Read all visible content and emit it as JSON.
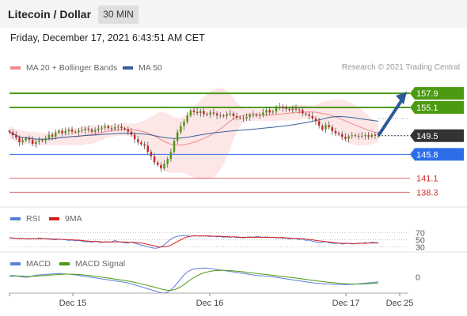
{
  "header": {
    "title": "Litecoin / Dollar",
    "timeframe": "30 MIN"
  },
  "datetime": "Friday, December 17, 2021 6:43:51 AM CET",
  "legend": {
    "bb": "MA 20 + Bollinger Bands",
    "ma50": "MA 50",
    "credit": "Research © 2021 Trading Central"
  },
  "rsi_legend": {
    "rsi": "RSI",
    "ma": "9MA"
  },
  "macd_legend": {
    "macd": "MACD",
    "signal": "MACD Signal"
  },
  "colors": {
    "resistance": "#4c9a10",
    "support": "#2d6ee8",
    "pivot": "#333333",
    "target": "#e06b6b",
    "arrow": "#2b5a9a",
    "ma50": "#3a5f9a",
    "bb": "#f08a8a"
  },
  "chart_data": [
    {
      "type": "candlestick",
      "x_tick_labels": [
        "Dec 15",
        "Dec 16",
        "Dec 17",
        "Dec 25"
      ],
      "ylim": [
        136,
        162
      ],
      "levels": [
        {
          "label": "157.9",
          "value": 157.9,
          "kind": "resistance"
        },
        {
          "label": "155.1",
          "value": 155.1,
          "kind": "resistance"
        },
        {
          "label": "149.5",
          "value": 149.5,
          "kind": "pivot"
        },
        {
          "label": "145.8",
          "value": 145.8,
          "kind": "support"
        },
        {
          "label": "141.1",
          "value": 141.1,
          "kind": "target"
        },
        {
          "label": "138.3",
          "value": 138.3,
          "kind": "target"
        }
      ],
      "close": [
        150.2,
        149.6,
        149.1,
        148.2,
        148.6,
        149.0,
        148.7,
        147.9,
        148.3,
        148.6,
        148.5,
        149.0,
        149.7,
        149.3,
        150.1,
        150.5,
        150.0,
        150.4,
        150.7,
        150.3,
        150.2,
        150.5,
        150.6,
        150.9,
        150.7,
        150.3,
        150.6,
        150.9,
        151.1,
        151.4,
        151.0,
        150.9,
        151.2,
        151.3,
        151.0,
        150.8,
        150.3,
        149.7,
        148.8,
        148.2,
        147.8,
        147.5,
        146.3,
        145.4,
        144.2,
        143.7,
        143.0,
        143.9,
        144.9,
        146.3,
        148.5,
        150.2,
        151.4,
        152.3,
        153.5,
        154.5,
        154.2,
        154.0,
        154.4,
        153.8,
        153.7,
        154.1,
        153.9,
        153.5,
        153.5,
        153.4,
        153.8,
        153.9,
        153.4,
        153.1,
        153.0,
        152.9,
        153.2,
        153.6,
        153.7,
        153.5,
        153.6,
        154.1,
        154.6,
        154.1,
        154.3,
        155.0,
        155.3,
        155.0,
        154.8,
        154.6,
        154.9,
        154.7,
        154.6,
        153.9,
        153.7,
        153.4,
        152.9,
        152.4,
        151.5,
        150.7,
        151.6,
        151.2,
        150.4,
        150.0,
        149.8,
        149.3,
        148.9,
        149.4,
        149.6,
        149.5,
        149.4,
        149.5,
        149.6,
        149.3,
        149.7,
        149.5,
        149.5
      ]
    },
    {
      "type": "line",
      "name": "RSI",
      "ylim": [
        0,
        100
      ],
      "tick_labels": [
        "70",
        "50",
        "30"
      ],
      "series": [
        {
          "name": "RSI",
          "values": [
            56,
            55,
            54,
            53,
            54,
            53,
            52,
            54,
            53,
            55,
            54,
            53,
            52,
            51,
            50,
            52,
            51,
            50,
            48,
            49,
            47,
            48,
            46,
            44,
            45,
            43,
            46,
            44,
            42,
            45,
            43,
            44,
            48,
            45,
            43,
            42,
            41,
            44,
            40,
            38,
            35,
            33,
            31,
            28,
            26,
            27,
            30,
            36,
            44,
            52,
            57,
            60,
            61,
            62,
            61,
            60,
            62,
            61,
            60,
            61,
            60,
            59,
            60,
            58,
            59,
            57,
            58,
            57,
            58,
            56,
            57,
            55,
            57,
            58,
            57,
            59,
            58,
            57,
            58,
            56,
            57,
            55,
            56,
            54,
            55,
            52,
            54,
            53,
            51,
            52,
            48,
            49,
            46,
            44,
            42,
            43,
            45,
            42,
            40,
            39,
            41,
            38,
            39,
            40,
            38,
            39,
            41,
            40,
            42,
            41,
            43,
            42,
            42
          ]
        },
        {
          "name": "9MA",
          "values": [
            55,
            55,
            54,
            54,
            54,
            53,
            53,
            53,
            53,
            53,
            53,
            53,
            53,
            52,
            52,
            52,
            51,
            51,
            50,
            50,
            49,
            49,
            48,
            47,
            46,
            45,
            45,
            45,
            44,
            44,
            44,
            44,
            44,
            44,
            44,
            44,
            43,
            43,
            43,
            42,
            41,
            39,
            37,
            35,
            33,
            31,
            30,
            30,
            32,
            35,
            40,
            45,
            50,
            55,
            58,
            60,
            61,
            61,
            61,
            61,
            61,
            61,
            60,
            60,
            60,
            59,
            59,
            58,
            58,
            58,
            57,
            57,
            57,
            57,
            57,
            57,
            57,
            57,
            57,
            57,
            57,
            56,
            56,
            56,
            55,
            55,
            54,
            54,
            53,
            53,
            52,
            51,
            50,
            48,
            47,
            46,
            45,
            44,
            43,
            42,
            41,
            40,
            40,
            40,
            39,
            39,
            40,
            40,
            40,
            41,
            41,
            41,
            41
          ]
        }
      ]
    },
    {
      "type": "line",
      "name": "MACD",
      "tick_labels": [
        "0"
      ],
      "series": [
        {
          "name": "MACD",
          "values": [
            0.1,
            0.15,
            0.1,
            0.05,
            0.0,
            -0.05,
            0.0,
            0.1,
            0.15,
            0.2,
            0.22,
            0.25,
            0.28,
            0.3,
            0.32,
            0.35,
            0.32,
            0.3,
            0.28,
            0.25,
            0.2,
            0.15,
            0.1,
            0.05,
            0.0,
            -0.05,
            -0.1,
            -0.15,
            -0.2,
            -0.25,
            -0.3,
            -0.35,
            -0.4,
            -0.45,
            -0.5,
            -0.55,
            -0.6,
            -0.7,
            -0.8,
            -0.9,
            -1.0,
            -1.1,
            -1.2,
            -1.3,
            -1.4,
            -1.5,
            -1.6,
            -1.62,
            -1.55,
            -1.3,
            -1.0,
            -0.6,
            -0.2,
            0.2,
            0.5,
            0.7,
            0.8,
            0.85,
            0.88,
            0.9,
            0.88,
            0.85,
            0.8,
            0.75,
            0.7,
            0.65,
            0.6,
            0.55,
            0.5,
            0.45,
            0.4,
            0.35,
            0.3,
            0.25,
            0.2,
            0.15,
            0.12,
            0.1,
            0.08,
            0.05,
            0.0,
            -0.05,
            -0.1,
            -0.15,
            -0.2,
            -0.25,
            -0.3,
            -0.35,
            -0.4,
            -0.45,
            -0.5,
            -0.55,
            -0.6,
            -0.62,
            -0.65,
            -0.68,
            -0.7,
            -0.72,
            -0.74,
            -0.75,
            -0.76,
            -0.77,
            -0.78,
            -0.77,
            -0.75,
            -0.72,
            -0.7,
            -0.67,
            -0.64,
            -0.6,
            -0.57,
            -0.54,
            -0.5
          ]
        },
        {
          "name": "MACD Signal",
          "values": [
            0.05,
            0.08,
            0.1,
            0.09,
            0.08,
            0.06,
            0.05,
            0.06,
            0.08,
            0.1,
            0.12,
            0.14,
            0.17,
            0.2,
            0.22,
            0.25,
            0.27,
            0.28,
            0.28,
            0.27,
            0.26,
            0.24,
            0.21,
            0.18,
            0.15,
            0.11,
            0.07,
            0.03,
            -0.02,
            -0.07,
            -0.12,
            -0.17,
            -0.22,
            -0.27,
            -0.32,
            -0.37,
            -0.42,
            -0.48,
            -0.55,
            -0.62,
            -0.7,
            -0.78,
            -0.86,
            -0.95,
            -1.04,
            -1.13,
            -1.22,
            -1.3,
            -1.35,
            -1.36,
            -1.3,
            -1.18,
            -1.0,
            -0.78,
            -0.52,
            -0.28,
            -0.06,
            0.13,
            0.28,
            0.4,
            0.5,
            0.57,
            0.62,
            0.65,
            0.66,
            0.66,
            0.65,
            0.63,
            0.61,
            0.58,
            0.55,
            0.51,
            0.47,
            0.43,
            0.39,
            0.35,
            0.31,
            0.27,
            0.24,
            0.2,
            0.16,
            0.12,
            0.08,
            0.04,
            0.0,
            -0.04,
            -0.08,
            -0.12,
            -0.17,
            -0.21,
            -0.26,
            -0.3,
            -0.35,
            -0.39,
            -0.43,
            -0.47,
            -0.51,
            -0.55,
            -0.58,
            -0.61,
            -0.64,
            -0.67,
            -0.69,
            -0.71,
            -0.72,
            -0.73,
            -0.73,
            -0.72,
            -0.71,
            -0.69,
            -0.67,
            -0.64,
            -0.61
          ]
        }
      ]
    }
  ]
}
